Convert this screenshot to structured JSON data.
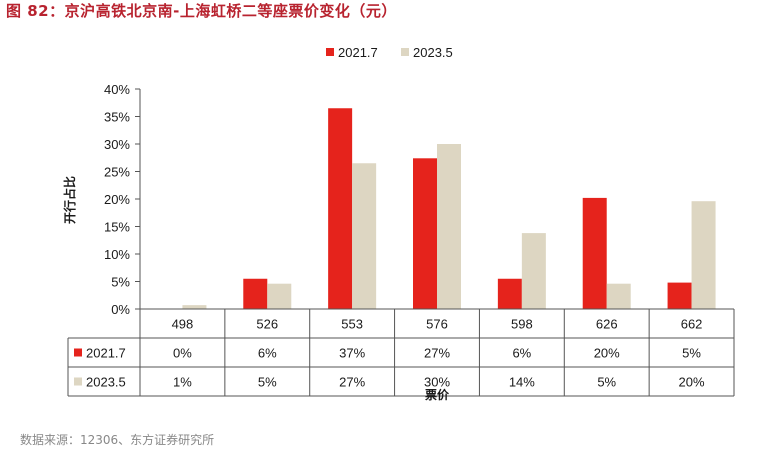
{
  "header": {
    "title": "图 82：京沪高铁北京南-上海虹桥二等座票价变化（元）"
  },
  "footer": {
    "source": "数据来源：12306、东方证券研究所"
  },
  "chart_data": {
    "type": "bar",
    "ylabel": "开行占比",
    "xlabel": "票价",
    "ylim": [
      0,
      40
    ],
    "yticks": [
      "0%",
      "5%",
      "10%",
      "15%",
      "20%",
      "25%",
      "30%",
      "35%",
      "40%"
    ],
    "categories": [
      "498",
      "526",
      "553",
      "576",
      "598",
      "626",
      "662"
    ],
    "legend_position": "top-center",
    "series": [
      {
        "name": "2021.7",
        "color": "#e5231c",
        "values": [
          0,
          5.5,
          36.5,
          27.4,
          5.5,
          20.2,
          4.8
        ],
        "table_labels": [
          "0%",
          "6%",
          "37%",
          "27%",
          "6%",
          "20%",
          "5%"
        ]
      },
      {
        "name": "2023.5",
        "color": "#ddd6c2",
        "values": [
          0.7,
          4.6,
          26.5,
          30.0,
          13.8,
          4.6,
          19.6
        ],
        "table_labels": [
          "1%",
          "5%",
          "27%",
          "30%",
          "14%",
          "5%",
          "20%"
        ]
      }
    ]
  }
}
